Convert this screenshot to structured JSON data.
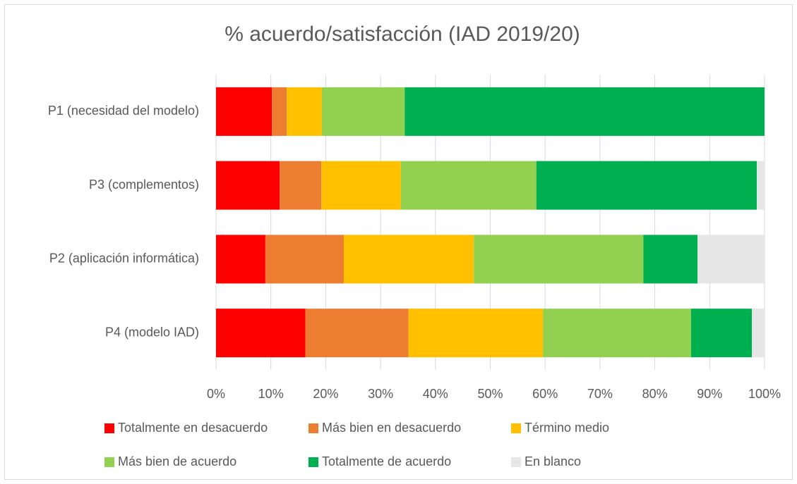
{
  "chart_data": {
    "type": "stacked_barh",
    "title": "% acuerdo/satisfacción (IAD 2019/20)",
    "categories": [
      "P1 (necesidad del modelo)",
      "P3 (complementos)",
      "P2 (aplicación informática)",
      "P4 (modelo IAD)"
    ],
    "series": [
      {
        "name": "Totalmente en desacuerdo",
        "color": "#ff0000",
        "values": [
          10.2,
          11.6,
          9.0,
          16.3
        ]
      },
      {
        "name": "Más bien en desacuerdo",
        "color": "#ed7d31",
        "values": [
          2.7,
          7.6,
          14.3,
          18.8
        ]
      },
      {
        "name": "Término medio",
        "color": "#ffc000",
        "values": [
          6.4,
          14.5,
          23.7,
          24.5
        ]
      },
      {
        "name": "Más bien de acuerdo",
        "color": "#92d050",
        "values": [
          15.1,
          24.7,
          30.9,
          27.0
        ]
      },
      {
        "name": "Totalmente de acuerdo",
        "color": "#00b050",
        "values": [
          65.6,
          40.2,
          9.9,
          11.1
        ]
      },
      {
        "name": "En blanco",
        "color": "#e7e6e6",
        "values": [
          0,
          1.4,
          12.2,
          2.3
        ]
      }
    ],
    "xlim": [
      0,
      100
    ],
    "xticks": [
      {
        "value": 0,
        "label": "0%"
      },
      {
        "value": 10,
        "label": "10%"
      },
      {
        "value": 20,
        "label": "20%"
      },
      {
        "value": 30,
        "label": "30%"
      },
      {
        "value": 40,
        "label": "40%"
      },
      {
        "value": 50,
        "label": "50%"
      },
      {
        "value": 60,
        "label": "60%"
      },
      {
        "value": 70,
        "label": "70%"
      },
      {
        "value": 80,
        "label": "80%"
      },
      {
        "value": 90,
        "label": "90%"
      },
      {
        "value": 100,
        "label": "100%"
      }
    ],
    "grid": true,
    "legend": "bottom"
  }
}
